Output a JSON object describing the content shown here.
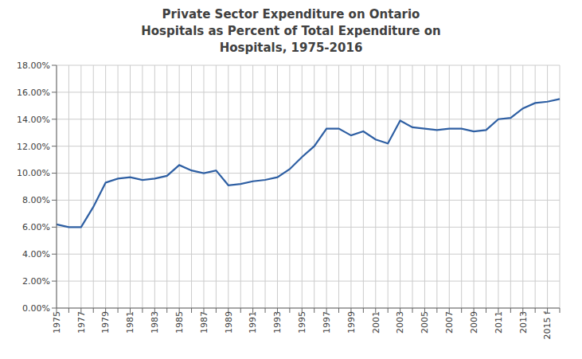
{
  "chart_data": {
    "type": "line",
    "title": "Private Sector Expenditure on Ontario\nHospitals as Percent of Total Expenditure on\nHospitals, 1975-2016",
    "categories": [
      "1975",
      null,
      "1977",
      null,
      "1979",
      null,
      "1981",
      null,
      "1983",
      null,
      "1985",
      null,
      "1987",
      null,
      "1989",
      null,
      "1991",
      null,
      "1993",
      null,
      "1995",
      null,
      "1997",
      null,
      "1999",
      null,
      "2001",
      null,
      "2003",
      null,
      "2005",
      null,
      "2007",
      null,
      "2009",
      null,
      "2011",
      null,
      "2013",
      null,
      "2015 f",
      null
    ],
    "values": [
      0.062,
      0.06,
      0.06,
      0.075,
      0.093,
      0.096,
      0.097,
      0.095,
      0.096,
      0.098,
      0.106,
      0.102,
      0.1,
      0.102,
      0.091,
      0.092,
      0.094,
      0.095,
      0.097,
      0.103,
      0.112,
      0.12,
      0.133,
      0.133,
      0.128,
      0.131,
      0.125,
      0.122,
      0.139,
      0.134,
      0.133,
      0.132,
      0.133,
      0.133,
      0.131,
      0.132,
      0.14,
      0.141,
      0.148,
      0.152,
      0.153,
      0.155
    ],
    "color": "#2E5FA3",
    "ylim": [
      0.0,
      0.18
    ],
    "yticks": [
      {
        "value": 0.0,
        "label": "0.00%"
      },
      {
        "value": 0.02,
        "label": "2.00%"
      },
      {
        "value": 0.04,
        "label": "4.00%"
      },
      {
        "value": 0.06,
        "label": "6.00%"
      },
      {
        "value": 0.08,
        "label": "8.00%"
      },
      {
        "value": 0.1,
        "label": "10.00%"
      },
      {
        "value": 0.12,
        "label": "12.00%"
      },
      {
        "value": 0.14,
        "label": "14.00%"
      },
      {
        "value": 0.16,
        "label": "16.00%"
      },
      {
        "value": 0.18,
        "label": "18.00%"
      }
    ],
    "grid": true
  }
}
